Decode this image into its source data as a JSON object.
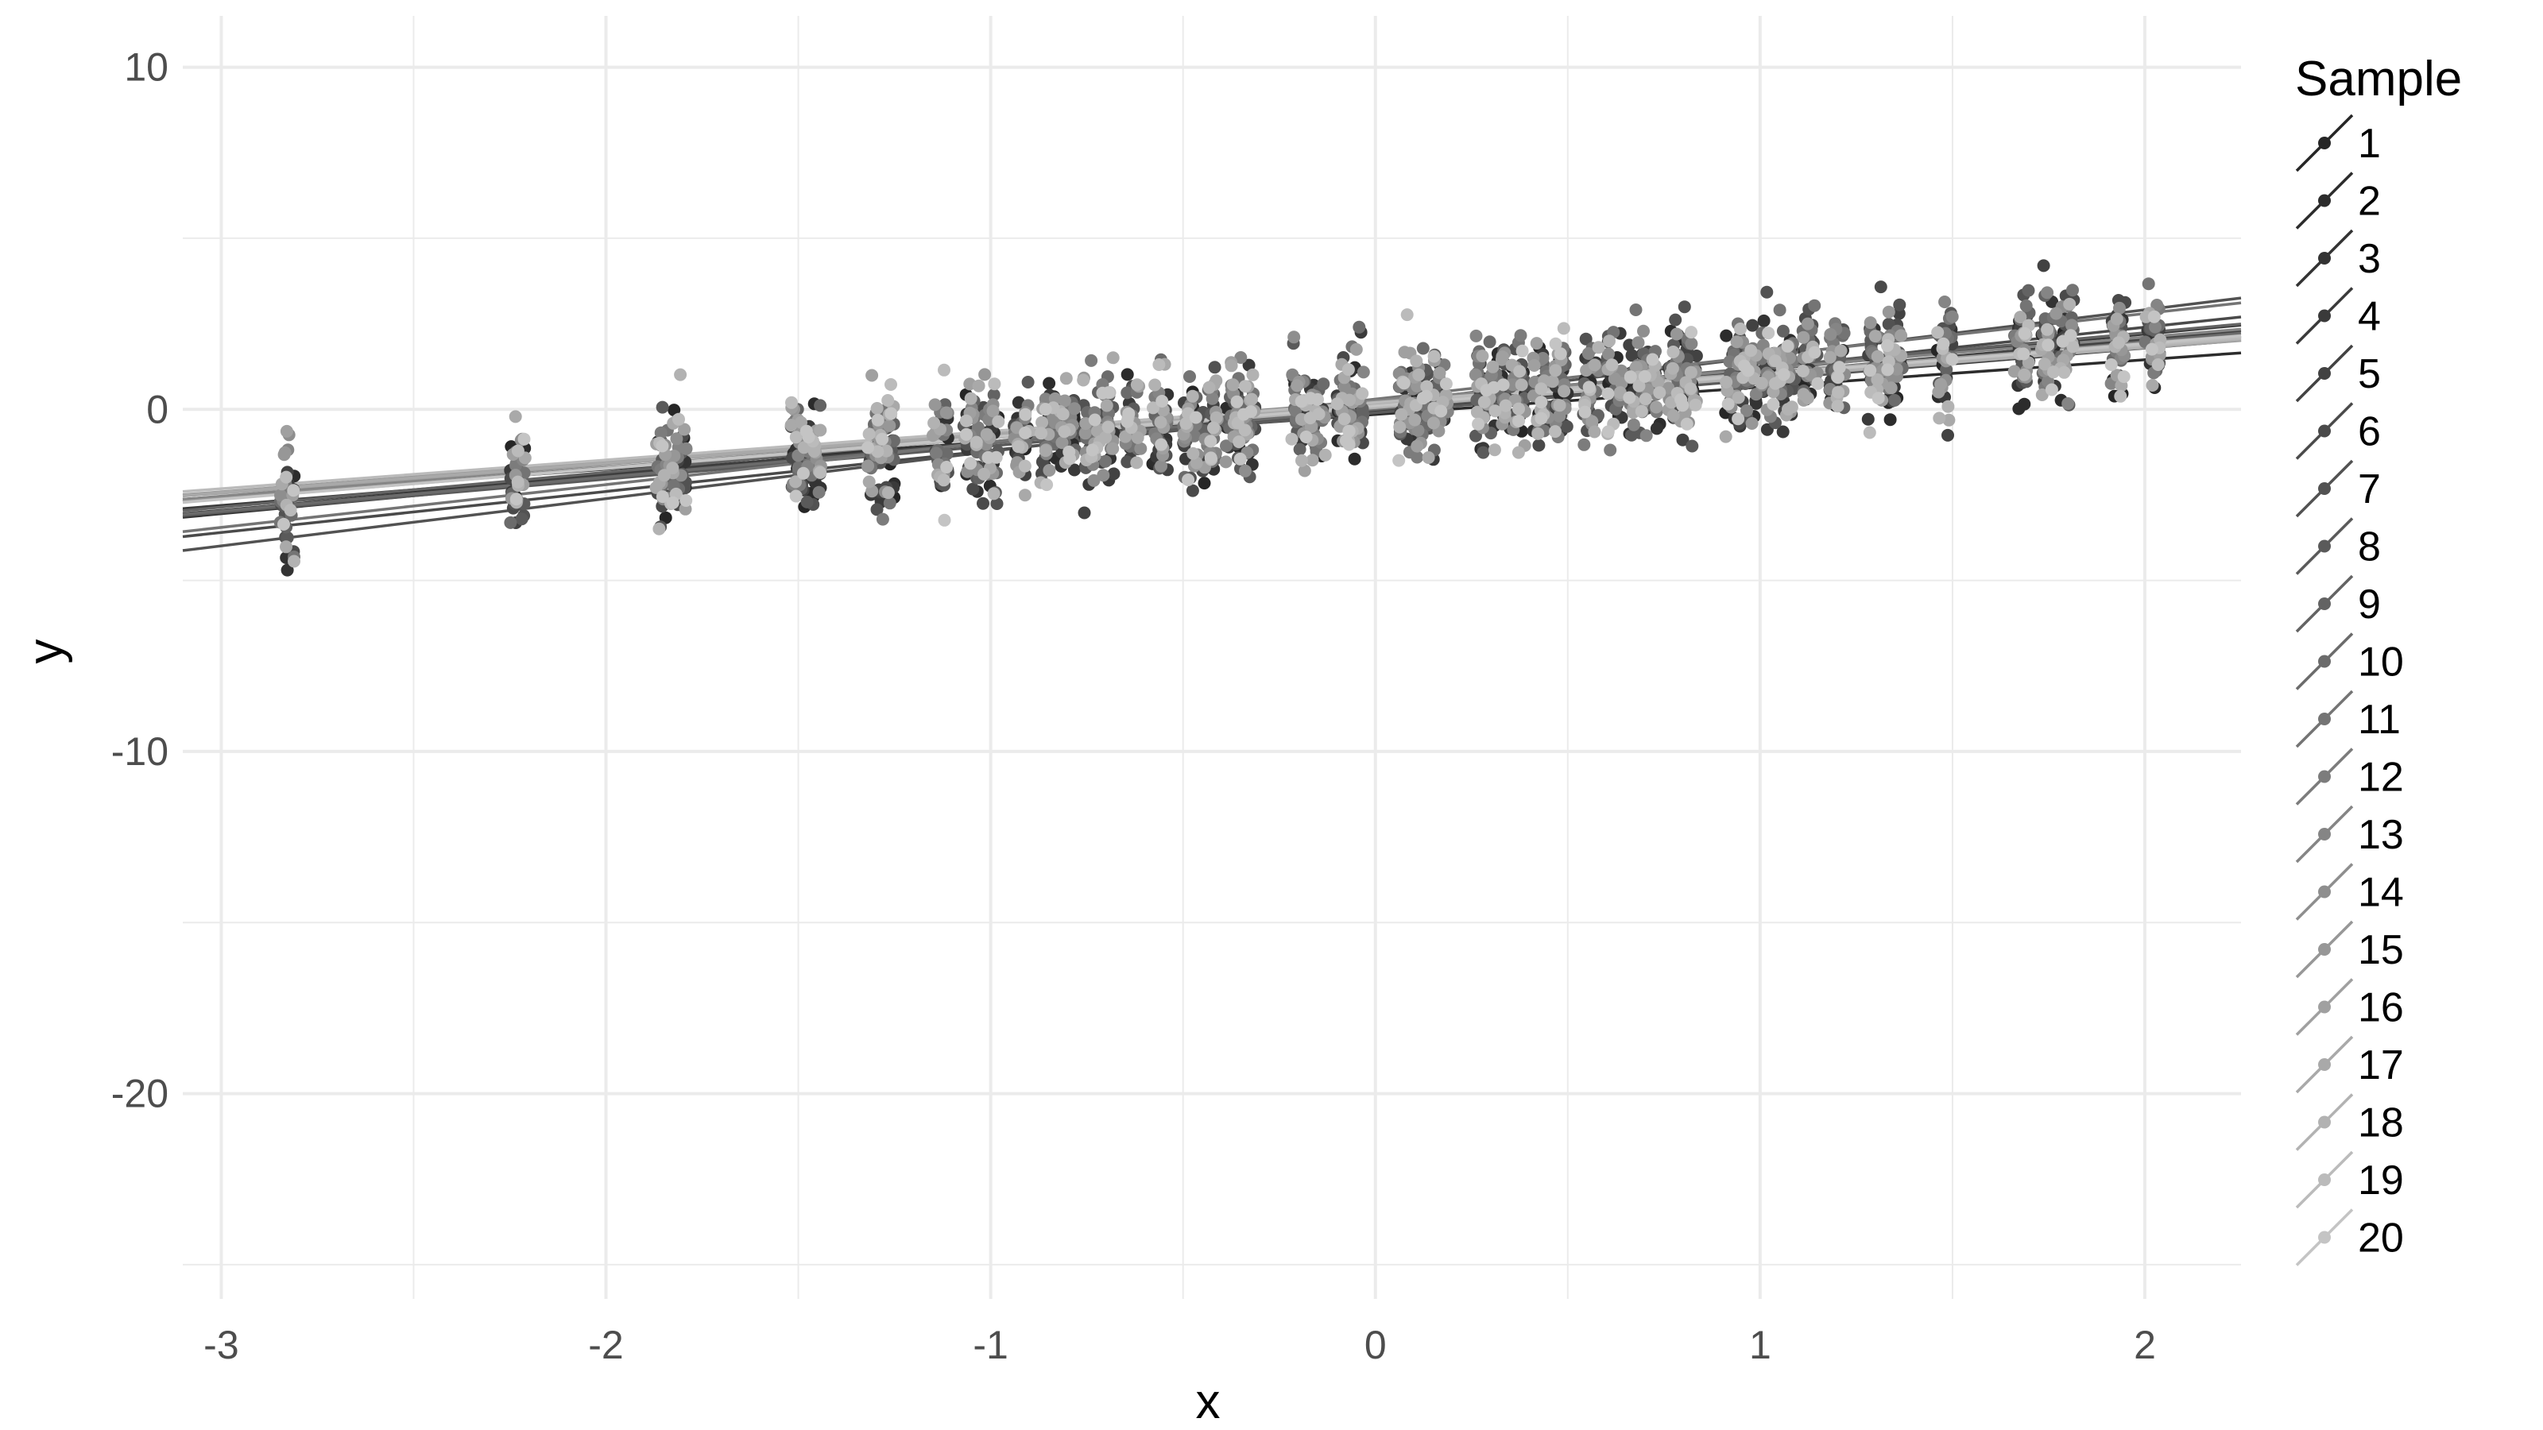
{
  "chart_data": {
    "type": "scatter",
    "xlabel": "x",
    "ylabel": "y",
    "xlim": [
      -3.1,
      2.25
    ],
    "ylim": [
      -26,
      11.5
    ],
    "x_ticks": [
      -3,
      -2,
      -1,
      0,
      1,
      2
    ],
    "y_ticks": [
      10,
      0,
      -10,
      -20
    ],
    "x_tick_labels": [
      "-3",
      "-2",
      "-1",
      "0",
      "1",
      "2"
    ],
    "y_tick_labels": [
      "10",
      "0",
      "-10",
      "-20"
    ],
    "grid": true,
    "legend": {
      "title": "Sample",
      "placement": "right",
      "labels": [
        "1",
        "2",
        "3",
        "4",
        "5",
        "6",
        "7",
        "8",
        "9",
        "10",
        "11",
        "12",
        "13",
        "14",
        "15",
        "16",
        "17",
        "18",
        "19",
        "20"
      ]
    },
    "x_positions": [
      -2.83,
      -2.23,
      -1.85,
      -1.81,
      -1.5,
      -1.46,
      -1.3,
      -1.27,
      -1.13,
      -1.05,
      -1.0,
      -0.92,
      -0.85,
      -0.8,
      -0.74,
      -0.7,
      -0.63,
      -0.56,
      -0.48,
      -0.43,
      -0.37,
      -0.33,
      -0.2,
      -0.15,
      -0.08,
      -0.05,
      0.08,
      0.12,
      0.17,
      0.28,
      0.32,
      0.37,
      0.43,
      0.48,
      0.56,
      0.62,
      0.68,
      0.72,
      0.78,
      0.82,
      0.93,
      0.97,
      1.02,
      1.07,
      1.13,
      1.2,
      1.3,
      1.35,
      1.48,
      1.68,
      1.75,
      1.8,
      1.93,
      2.02
    ],
    "series": [
      {
        "name": "1",
        "intercept": 0.0,
        "slope": 0.95,
        "color": "#262626"
      },
      {
        "name": "2",
        "intercept": -0.15,
        "slope": 0.8,
        "color": "#2c2c2c"
      },
      {
        "name": "3",
        "intercept": 0.1,
        "slope": 1.05,
        "color": "#333333"
      },
      {
        "name": "4",
        "intercept": -0.05,
        "slope": 0.92,
        "color": "#3a3a3a"
      },
      {
        "name": "5",
        "intercept": 0.05,
        "slope": 1.0,
        "color": "#424242"
      },
      {
        "name": "6",
        "intercept": 0.0,
        "slope": 1.2,
        "color": "#4a4a4a"
      },
      {
        "name": "7",
        "intercept": 0.15,
        "slope": 1.38,
        "color": "#525252"
      },
      {
        "name": "8",
        "intercept": -0.1,
        "slope": 0.97,
        "color": "#5a5a5a"
      },
      {
        "name": "9",
        "intercept": 0.2,
        "slope": 1.02,
        "color": "#636363"
      },
      {
        "name": "10",
        "intercept": 0.0,
        "slope": 0.99,
        "color": "#6b6b6b"
      },
      {
        "name": "11",
        "intercept": 0.3,
        "slope": 1.25,
        "color": "#747474"
      },
      {
        "name": "12",
        "intercept": 0.1,
        "slope": 0.9,
        "color": "#7c7c7c"
      },
      {
        "name": "13",
        "intercept": 0.25,
        "slope": 0.93,
        "color": "#858585"
      },
      {
        "name": "14",
        "intercept": 0.05,
        "slope": 0.88,
        "color": "#8e8e8e"
      },
      {
        "name": "15",
        "intercept": 0.2,
        "slope": 0.87,
        "color": "#979797"
      },
      {
        "name": "16",
        "intercept": 0.1,
        "slope": 0.85,
        "color": "#a0a0a0"
      },
      {
        "name": "17",
        "intercept": 0.15,
        "slope": 0.86,
        "color": "#a9a9a9"
      },
      {
        "name": "18",
        "intercept": 0.05,
        "slope": 0.89,
        "color": "#b2b2b2"
      },
      {
        "name": "19",
        "intercept": 0.2,
        "slope": 0.84,
        "color": "#bbbbbb"
      },
      {
        "name": "20",
        "intercept": 0.1,
        "slope": 0.91,
        "color": "#c4c4c4"
      }
    ]
  }
}
